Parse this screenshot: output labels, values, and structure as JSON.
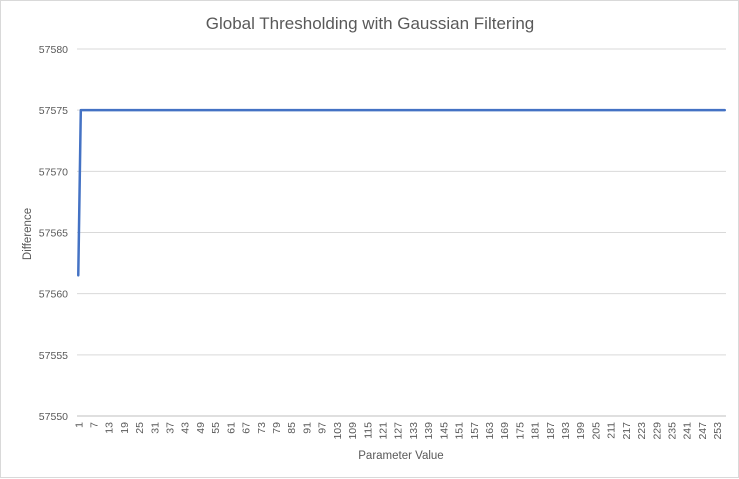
{
  "chart_data": {
    "type": "line",
    "title": "Global Thresholding with Gaussian Filtering",
    "xlabel": "Parameter Value",
    "ylabel": "Difference",
    "ylim": [
      57550,
      57580
    ],
    "yticks": [
      57550,
      57555,
      57560,
      57565,
      57570,
      57575,
      57580
    ],
    "xticks": [
      1,
      7,
      13,
      19,
      25,
      31,
      37,
      43,
      49,
      55,
      61,
      67,
      73,
      79,
      85,
      91,
      97,
      103,
      109,
      115,
      121,
      127,
      133,
      139,
      145,
      151,
      157,
      163,
      169,
      175,
      181,
      187,
      193,
      199,
      205,
      211,
      217,
      223,
      229,
      235,
      241,
      247,
      253
    ],
    "x_range": [
      1,
      256
    ],
    "grid": "horizontal",
    "legend": "none",
    "series": [
      {
        "color": "#4472c4",
        "points": [
          [
            1,
            57561.5
          ],
          [
            2,
            57575
          ],
          [
            256,
            57575
          ]
        ]
      }
    ]
  }
}
